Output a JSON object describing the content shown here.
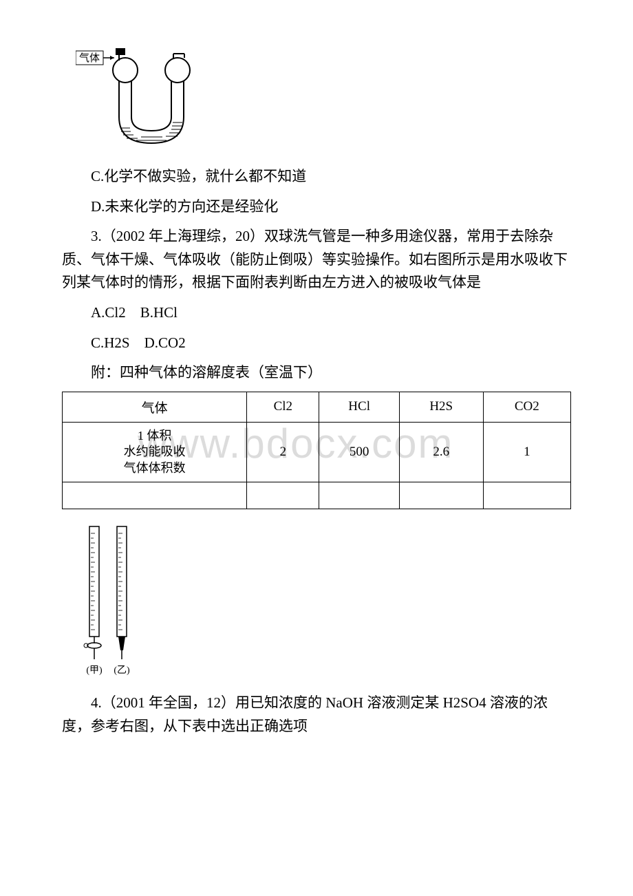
{
  "ushape_label": "气体",
  "option_c": "C.化学不做实验，就什么都不知道",
  "option_d": "D.未来化学的方向还是经验化",
  "q3_text": "3.（2002 年上海理综，20）双球洗气管是一种多用途仪器，常用于去除杂质、气体干燥、气体吸收（能防止倒吸）等实验操作。如右图所示是用水吸收下列某气体时的情形，根据下面附表判断由左方进入的被吸收气体是",
  "q3_opt_ab": "A.Cl2　B.HCl",
  "q3_opt_cd": "C.H2S　D.CO2",
  "table_caption": "附：四种气体的溶解度表（室温下）",
  "table": {
    "header": [
      "气体",
      "Cl2",
      "HCl",
      "H2S",
      "CO2"
    ],
    "rowlabel": "1 体积\n水约能吸收\n气体体积数",
    "values": [
      "2",
      "500",
      "2.6",
      "1"
    ]
  },
  "burette_labels": {
    "left": "(甲)",
    "right": "(乙)"
  },
  "q4_text": "4.（2001 年全国，12）用已知浓度的 NaOH 溶液测定某 H2SO4 溶液的浓度，参考右图，从下表中选出正确选项",
  "watermark": "www.bdocx.com"
}
